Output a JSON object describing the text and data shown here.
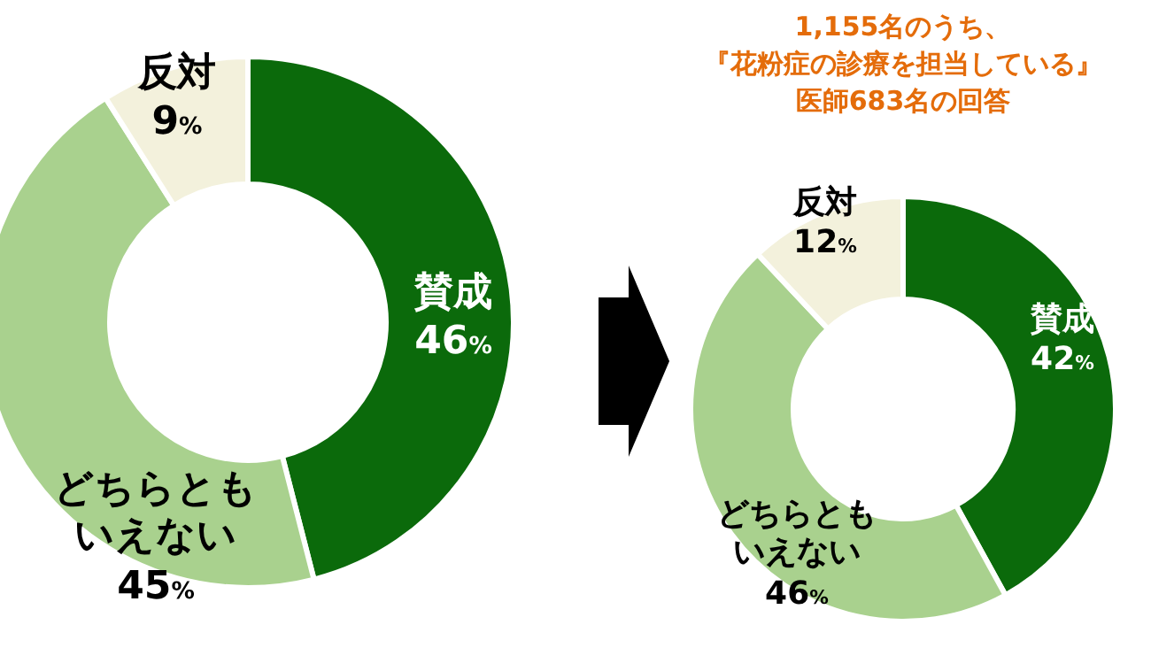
{
  "chart_data": [
    {
      "type": "donut",
      "categories": [
        "賛成",
        "どちらともいえない",
        "反対"
      ],
      "values": [
        46,
        45,
        9
      ],
      "value_labels": [
        "46%",
        "45%",
        "9%"
      ],
      "colors": [
        "#0b6a0b",
        "#a9d18e",
        "#f3f1dc"
      ]
    },
    {
      "type": "donut",
      "title": "1,155名のうち、『花粉症の診療を担当している』医師683名の回答",
      "categories": [
        "賛成",
        "どちらともいえない",
        "反対"
      ],
      "values": [
        42,
        46,
        12
      ],
      "value_labels": [
        "42%",
        "46%",
        "12%"
      ],
      "colors": [
        "#0b6a0b",
        "#a9d18e",
        "#f3f1dc"
      ]
    }
  ]
}
